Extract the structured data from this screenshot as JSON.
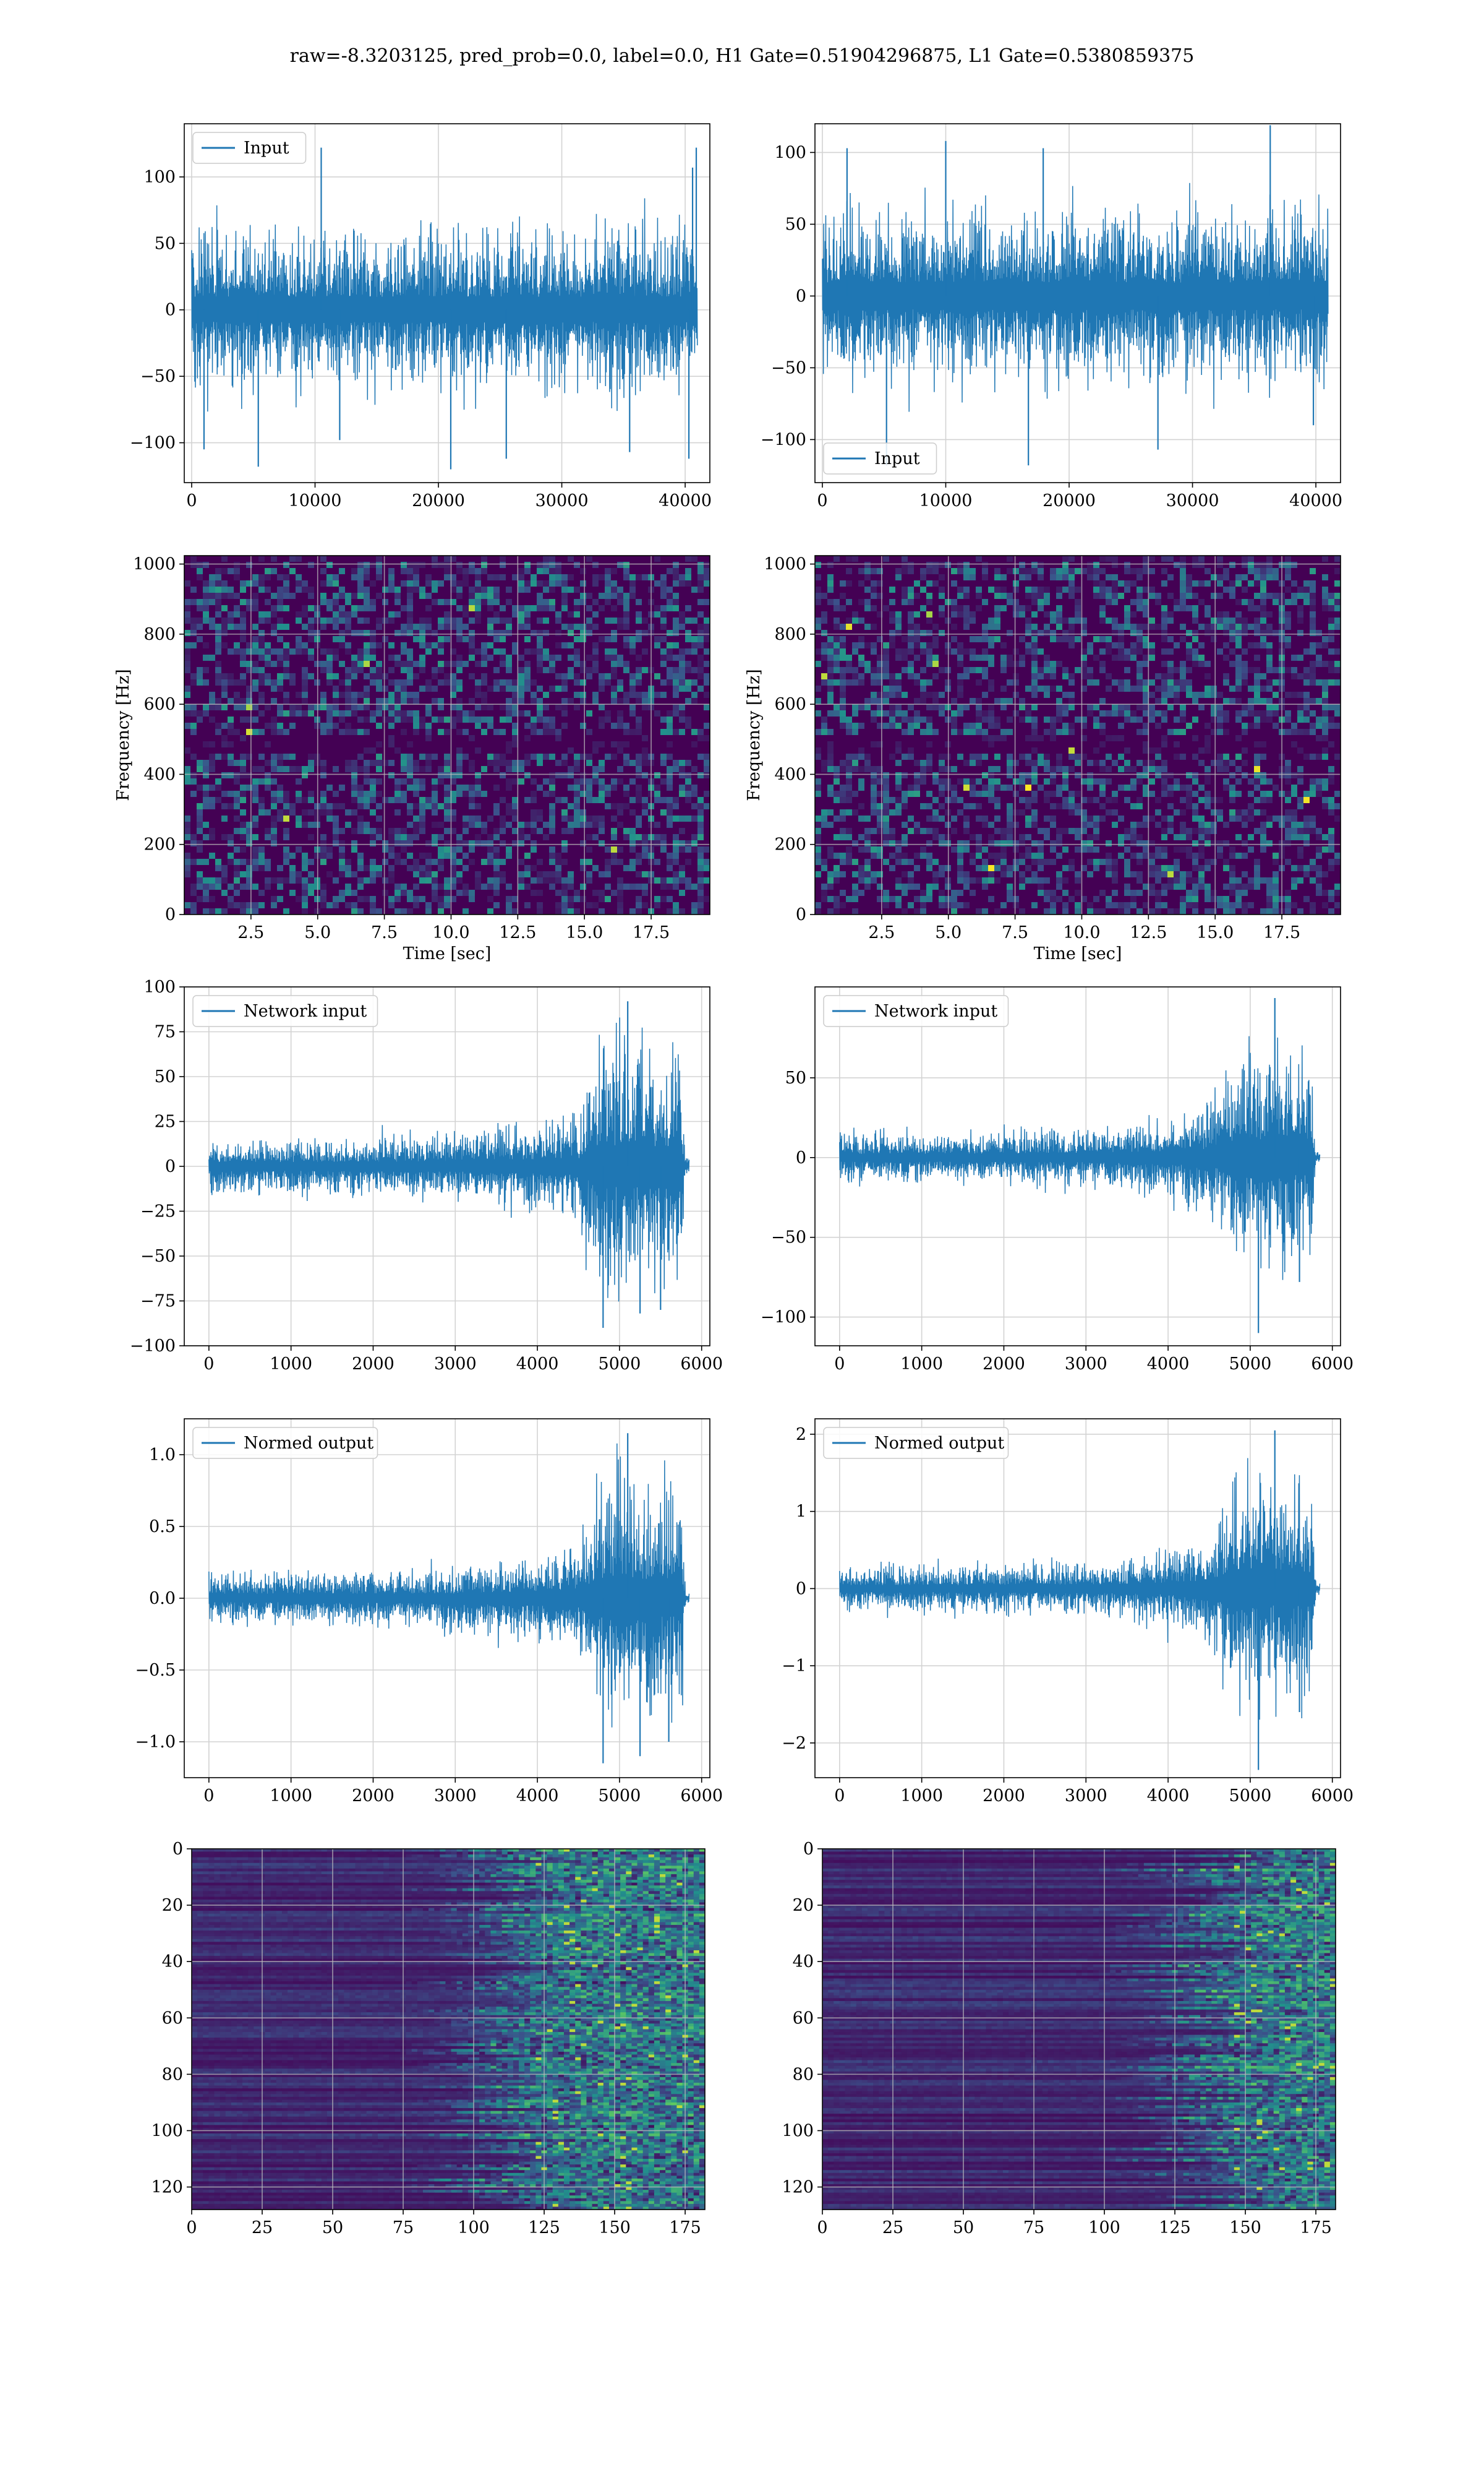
{
  "figure": {
    "suptitle": "raw=-8.3203125, pred_prob=0.0, label=0.0, H1 Gate=0.51904296875, L1 Gate=0.5380859375"
  },
  "colors": {
    "line": "#1f77b4",
    "grid": "#d3d3d3",
    "viridis_dark": "#440154"
  },
  "chart_data": [
    {
      "id": "h1-input",
      "type": "line",
      "title": "",
      "xlabel": "",
      "ylabel": "",
      "xlim": [
        -600,
        42000
      ],
      "ylim": [
        -130,
        140
      ],
      "xticks": [
        0,
        10000,
        20000,
        30000,
        40000
      ],
      "yticks": [
        -100,
        -50,
        0,
        50,
        100
      ],
      "grid": true,
      "legend_position": "upper left",
      "series": [
        {
          "name": "Input",
          "envelope": {
            "x": [
              0,
              41000
            ],
            "low": [
              -60,
              -60
            ],
            "high": [
              65,
              65
            ]
          },
          "peaks": [
            [
              1000,
              -105
            ],
            [
              5400,
              -118
            ],
            [
              10500,
              122
            ],
            [
              12000,
              -98
            ],
            [
              21000,
              -120
            ],
            [
              25500,
              -112
            ],
            [
              35500,
              -107
            ],
            [
              40300,
              -112
            ],
            [
              40600,
              107
            ],
            [
              40900,
              122
            ]
          ]
        }
      ]
    },
    {
      "id": "l1-input",
      "type": "line",
      "title": "",
      "xlabel": "",
      "ylabel": "",
      "xlim": [
        -600,
        42000
      ],
      "ylim": [
        -130,
        120
      ],
      "xticks": [
        0,
        10000,
        20000,
        30000,
        40000
      ],
      "yticks": [
        -100,
        -50,
        0,
        50,
        100
      ],
      "grid": true,
      "legend_position": "lower left",
      "series": [
        {
          "name": "Input",
          "envelope": {
            "x": [
              0,
              41000
            ],
            "low": [
              -62,
              -62
            ],
            "high": [
              62,
              62
            ]
          },
          "peaks": [
            [
              2000,
              103
            ],
            [
              5200,
              -118
            ],
            [
              10000,
              108
            ],
            [
              16700,
              -118
            ],
            [
              17900,
              103
            ],
            [
              27200,
              -107
            ],
            [
              36300,
              119
            ],
            [
              39800,
              -90
            ]
          ]
        }
      ]
    },
    {
      "id": "h1-spectrogram",
      "type": "heatmap",
      "title": "",
      "xlabel": "Time [sec]",
      "ylabel": "Frequency [Hz]",
      "xlim": [
        0,
        19.7
      ],
      "ylim": [
        0,
        1024
      ],
      "xticks": [
        2.5,
        5.0,
        7.5,
        10.0,
        12.5,
        15.0,
        17.5
      ],
      "yticks": [
        0,
        200,
        400,
        600,
        800,
        1000
      ],
      "grid": true,
      "colormap": "viridis",
      "dark_band_hz": 500
    },
    {
      "id": "l1-spectrogram",
      "type": "heatmap",
      "title": "",
      "xlabel": "Time [sec]",
      "ylabel": "Frequency [Hz]",
      "xlim": [
        0,
        19.7
      ],
      "ylim": [
        0,
        1024
      ],
      "xticks": [
        2.5,
        5.0,
        7.5,
        10.0,
        12.5,
        15.0,
        17.5
      ],
      "yticks": [
        0,
        200,
        400,
        600,
        800,
        1000
      ],
      "grid": true,
      "colormap": "viridis",
      "dark_band_hz": 500
    },
    {
      "id": "h1-network-input",
      "type": "line",
      "title": "",
      "xlabel": "",
      "ylabel": "",
      "xlim": [
        -300,
        6100
      ],
      "ylim": [
        -100,
        100
      ],
      "xticks": [
        0,
        1000,
        2000,
        3000,
        4000,
        5000,
        6000
      ],
      "yticks": [
        -100,
        -75,
        -50,
        -25,
        0,
        25,
        50,
        75,
        100
      ],
      "grid": true,
      "legend_position": "upper left",
      "series": [
        {
          "name": "Network input",
          "envelope": {
            "x": [
              0,
              1000,
              2000,
              3000,
              3800,
              4500,
              4700,
              4900,
              5300,
              5750,
              5800,
              5850
            ],
            "low": [
              -16,
              -16,
              -17,
              -19,
              -25,
              -32,
              -65,
              -75,
              -70,
              -70,
              -5,
              -4
            ],
            "high": [
              15,
              16,
              17,
              19,
              25,
              30,
              65,
              78,
              75,
              70,
              5,
              4
            ]
          },
          "peaks": [
            [
              4800,
              -90
            ],
            [
              5100,
              92
            ],
            [
              5250,
              -82
            ],
            [
              5500,
              -80
            ]
          ]
        }
      ]
    },
    {
      "id": "l1-network-input",
      "type": "line",
      "title": "",
      "xlabel": "",
      "ylabel": "",
      "xlim": [
        -300,
        6100
      ],
      "ylim": [
        -118,
        107
      ],
      "xticks": [
        0,
        1000,
        2000,
        3000,
        4000,
        5000,
        6000
      ],
      "yticks": [
        -100,
        -50,
        0,
        50
      ],
      "grid": true,
      "legend_position": "upper left",
      "series": [
        {
          "name": "Network input",
          "envelope": {
            "x": [
              0,
              1000,
              2000,
              3000,
              3800,
              4500,
              4700,
              4900,
              5300,
              5750,
              5800,
              5850
            ],
            "low": [
              -16,
              -16,
              -17,
              -19,
              -25,
              -35,
              -55,
              -70,
              -70,
              -70,
              -4,
              -4
            ],
            "high": [
              15,
              16,
              17,
              19,
              25,
              35,
              60,
              75,
              70,
              65,
              4,
              3
            ]
          },
          "peaks": [
            [
              5100,
              -110
            ],
            [
              5300,
              100
            ],
            [
              5600,
              -78
            ]
          ]
        }
      ]
    },
    {
      "id": "h1-normed-output",
      "type": "line",
      "title": "",
      "xlabel": "",
      "ylabel": "",
      "xlim": [
        -300,
        6100
      ],
      "ylim": [
        -1.25,
        1.25
      ],
      "xticks": [
        0,
        1000,
        2000,
        3000,
        4000,
        5000,
        6000
      ],
      "yticks": [
        -1.0,
        -0.5,
        0.0,
        0.5,
        1.0
      ],
      "grid": true,
      "legend_position": "upper left",
      "series": [
        {
          "name": "Normed output",
          "envelope": {
            "x": [
              0,
              1000,
              2000,
              3000,
              3800,
              4500,
              4700,
              4900,
              5300,
              5750,
              5800,
              5850
            ],
            "low": [
              -0.18,
              -0.18,
              -0.2,
              -0.22,
              -0.3,
              -0.4,
              -0.8,
              -0.95,
              -0.85,
              -0.85,
              -0.06,
              -0.05
            ],
            "high": [
              0.18,
              0.19,
              0.2,
              0.22,
              0.3,
              0.38,
              0.8,
              0.95,
              0.9,
              0.85,
              0.06,
              0.05
            ]
          },
          "peaks": [
            [
              4800,
              -1.15
            ],
            [
              5100,
              1.15
            ],
            [
              5250,
              -1.1
            ],
            [
              5600,
              -1.0
            ]
          ]
        }
      ]
    },
    {
      "id": "l1-normed-output",
      "type": "line",
      "title": "",
      "xlabel": "",
      "ylabel": "",
      "xlim": [
        -300,
        6100
      ],
      "ylim": [
        -2.45,
        2.2
      ],
      "xticks": [
        0,
        1000,
        2000,
        3000,
        4000,
        5000,
        6000
      ],
      "yticks": [
        -2,
        -1,
        0,
        1,
        2
      ],
      "grid": true,
      "legend_position": "upper left",
      "series": [
        {
          "name": "Normed output",
          "envelope": {
            "x": [
              0,
              1000,
              2000,
              3000,
              3800,
              4500,
              4700,
              4900,
              5300,
              5750,
              5800,
              5850
            ],
            "low": [
              -0.3,
              -0.3,
              -0.32,
              -0.35,
              -0.45,
              -0.7,
              -1.2,
              -1.5,
              -1.4,
              -1.4,
              -0.08,
              -0.07
            ],
            "high": [
              0.3,
              0.3,
              0.32,
              0.35,
              0.45,
              0.7,
              1.2,
              1.6,
              1.5,
              1.3,
              0.08,
              0.07
            ]
          },
          "peaks": [
            [
              5100,
              -2.35
            ],
            [
              5300,
              2.05
            ],
            [
              5600,
              -1.6
            ]
          ]
        }
      ]
    },
    {
      "id": "h1-feature-map",
      "type": "heatmap",
      "title": "",
      "xlabel": "",
      "ylabel": "",
      "xlim": [
        0,
        182
      ],
      "ylim": [
        128,
        0
      ],
      "xticks": [
        0,
        25,
        50,
        75,
        100,
        125,
        150,
        175
      ],
      "yticks": [
        0,
        20,
        40,
        60,
        80,
        100,
        120
      ],
      "grid": true,
      "colormap": "viridis",
      "activity_onset": 100
    },
    {
      "id": "l1-feature-map",
      "type": "heatmap",
      "title": "",
      "xlabel": "",
      "ylabel": "",
      "xlim": [
        0,
        182
      ],
      "ylim": [
        128,
        0
      ],
      "xticks": [
        0,
        25,
        50,
        75,
        100,
        125,
        150,
        175
      ],
      "yticks": [
        0,
        20,
        40,
        60,
        80,
        100,
        120
      ],
      "grid": true,
      "colormap": "viridis",
      "activity_onset": 125
    }
  ]
}
